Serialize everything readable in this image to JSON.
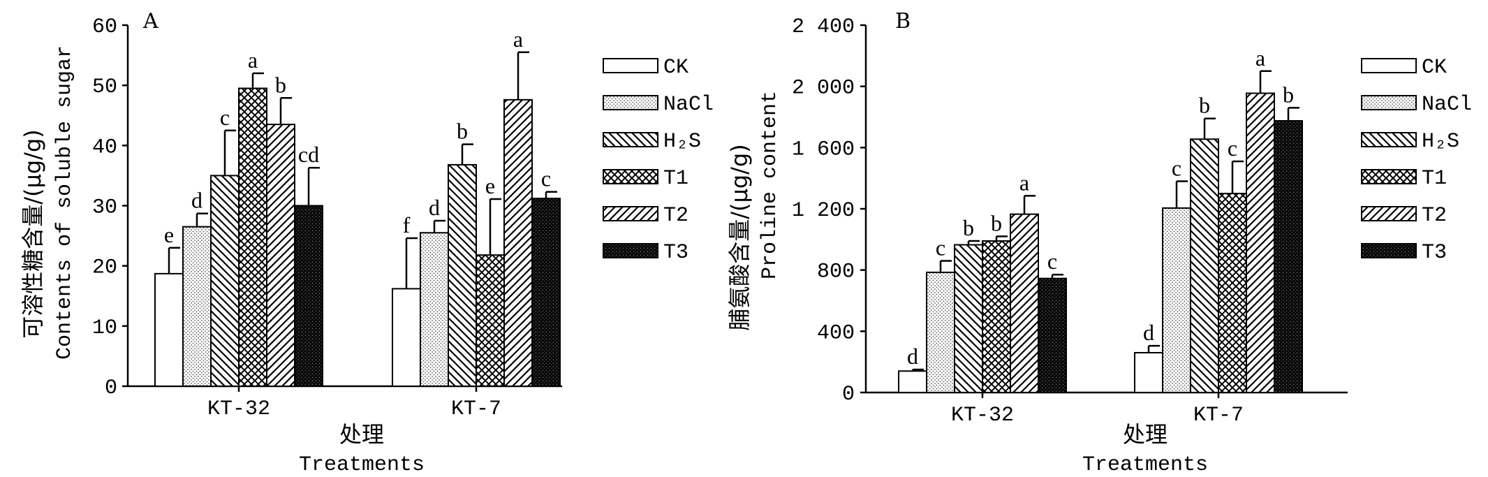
{
  "chart_data": [
    {
      "panel": "A",
      "type": "bar",
      "categories": [
        "KT-32",
        "KT-7"
      ],
      "xlabel_cn": "处理",
      "xlabel_en": "Treatments",
      "ylabel_cn": "可溶性糖含量/(μg/g)",
      "ylabel_en": "Contents of soluble sugar",
      "ylim": [
        0,
        60
      ],
      "yticks": [
        0,
        10,
        20,
        30,
        40,
        50,
        60
      ],
      "ytick_labels": [
        "0",
        "10",
        "20",
        "30",
        "40",
        "50",
        "60"
      ],
      "legend_position": "right",
      "series": [
        {
          "name": "CK",
          "values": [
            18.7,
            16.2
          ],
          "errors": [
            4.3,
            8.4
          ],
          "letters": [
            "e",
            "f"
          ]
        },
        {
          "name": "NaCl",
          "values": [
            26.5,
            25.5
          ],
          "errors": [
            2.2,
            2.0
          ],
          "letters": [
            "d",
            "d"
          ]
        },
        {
          "name": "H₂S",
          "values": [
            35.0,
            36.8
          ],
          "errors": [
            7.5,
            3.4
          ],
          "letters": [
            "c",
            "b"
          ]
        },
        {
          "name": "T1",
          "values": [
            49.5,
            21.8
          ],
          "errors": [
            2.5,
            9.3
          ],
          "letters": [
            "a",
            "e"
          ]
        },
        {
          "name": "T2",
          "values": [
            43.5,
            47.6
          ],
          "errors": [
            4.4,
            7.9
          ],
          "letters": [
            "b",
            "a"
          ]
        },
        {
          "name": "T3",
          "values": [
            30.0,
            31.2
          ],
          "errors": [
            6.3,
            1.1
          ],
          "letters": [
            "cd",
            "c"
          ]
        }
      ]
    },
    {
      "panel": "B",
      "type": "bar",
      "categories": [
        "KT-32",
        "KT-7"
      ],
      "xlabel_cn": "处理",
      "xlabel_en": "Treatments",
      "ylabel_cn": "脯氨酸含量/(μg/g)",
      "ylabel_en": "Proline content",
      "ylim": [
        0,
        2400
      ],
      "yticks": [
        0,
        400,
        800,
        1200,
        1600,
        2000,
        2400
      ],
      "ytick_labels": [
        "0",
        "400",
        "800",
        "1 200",
        "1 600",
        "2 000",
        "2 400"
      ],
      "legend_position": "right",
      "series": [
        {
          "name": "CK",
          "values": [
            140,
            260
          ],
          "errors": [
            10,
            45
          ],
          "letters": [
            "d",
            "d"
          ]
        },
        {
          "name": "NaCl",
          "values": [
            785,
            1205
          ],
          "errors": [
            75,
            175
          ],
          "letters": [
            "c",
            "c"
          ]
        },
        {
          "name": "H₂S",
          "values": [
            965,
            1655
          ],
          "errors": [
            25,
            135
          ],
          "letters": [
            "b",
            "b"
          ]
        },
        {
          "name": "T1",
          "values": [
            990,
            1300
          ],
          "errors": [
            30,
            210
          ],
          "letters": [
            "b",
            "c"
          ]
        },
        {
          "name": "T2",
          "values": [
            1165,
            1955
          ],
          "errors": [
            120,
            145
          ],
          "letters": [
            "a",
            "a"
          ]
        },
        {
          "name": "T3",
          "values": [
            745,
            1775
          ],
          "errors": [
            25,
            85
          ],
          "letters": [
            "c",
            "b"
          ]
        }
      ]
    }
  ]
}
